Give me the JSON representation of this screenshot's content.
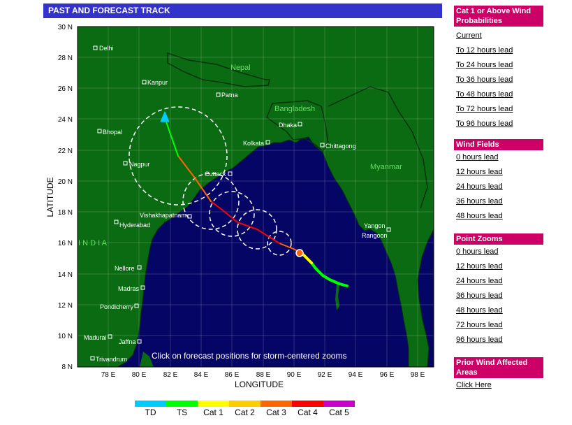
{
  "title": "PAST AND FORECAST TRACK",
  "map": {
    "lat_labels": [
      "30 N",
      "28 N",
      "26 N",
      "24 N",
      "22 N",
      "20 N",
      "18 N",
      "16 N",
      "14 N",
      "12 N",
      "10 N",
      "8 N"
    ],
    "lon_labels": [
      "78 E",
      "80 E",
      "82 E",
      "84 E",
      "86 E",
      "88 E",
      "90 E",
      "92 E",
      "94 E",
      "96 E",
      "98 E"
    ],
    "xlabel": "LONGITUDE",
    "ylabel": "LATITUDE",
    "countries": [
      "Nepal",
      "Bangladesh",
      "Myanmar",
      "I N D I A"
    ],
    "cities": [
      "Delhi",
      "Kanpur",
      "Patna",
      "Bhopal",
      "Nagpur",
      "Cuttack",
      "Kolkata",
      "Dhaka",
      "Chittagong",
      "Vishakhapatnam",
      "Hyderabad",
      "Yangon",
      "Rangoon",
      "Nellore",
      "Madras",
      "Pondicherry",
      "Madurai",
      "Jaffna",
      "Trivandrum"
    ],
    "hint": "Click on forecast positions for storm-centered zooms",
    "colors": {
      "land": "#0b6b12",
      "ocean": "#050566",
      "grid": "#ffffff"
    }
  },
  "sidebar": {
    "wind_prob": {
      "heading": "Cat 1 or Above Wind Probabilities",
      "links": [
        "Current",
        "To 12 hours lead",
        "To 24 hours lead",
        "To 36 hours lead",
        "To 48 hours lead",
        "To 72 hours lead",
        "To 96 hours lead"
      ]
    },
    "wind_fields": {
      "heading": "Wind Fields",
      "links": [
        "0 hours lead",
        "12 hours lead",
        "24 hours lead",
        "36 hours lead",
        "48 hours lead"
      ]
    },
    "point_zooms": {
      "heading": "Point Zooms",
      "links": [
        "0 hours lead",
        "12 hours lead",
        "24 hours lead",
        "36 hours lead",
        "48 hours lead",
        "72 hours lead",
        "96 hours lead"
      ]
    },
    "prior": {
      "heading": "Prior Wind Affected Areas",
      "links": [
        "Click Here"
      ]
    }
  },
  "legend": [
    {
      "label": "TD",
      "color": "#00ccff"
    },
    {
      "label": "TS",
      "color": "#00ff00"
    },
    {
      "label": "Cat 1",
      "color": "#ffff00"
    },
    {
      "label": "Cat 2",
      "color": "#ffcc00"
    },
    {
      "label": "Cat 3",
      "color": "#ff6600"
    },
    {
      "label": "Cat 4",
      "color": "#ff0000"
    },
    {
      "label": "Cat 5",
      "color": "#cc00cc"
    }
  ]
}
